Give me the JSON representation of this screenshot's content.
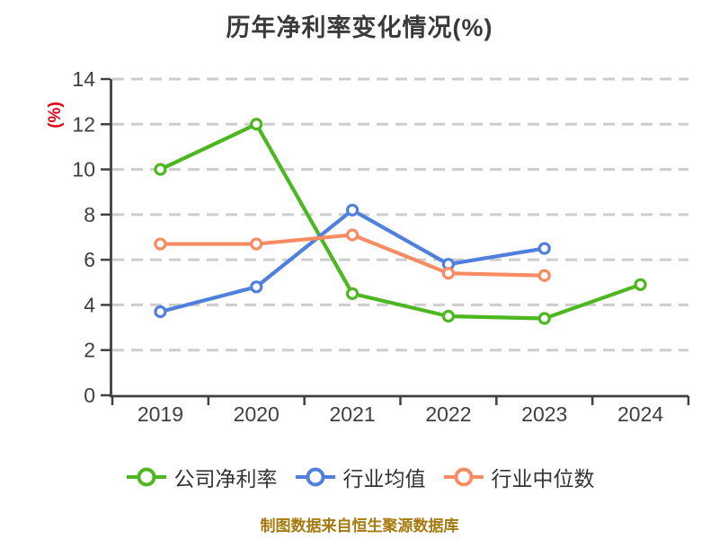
{
  "footer": {
    "text": "制图数据来自恒生聚源数据库"
  },
  "style": {
    "background": "#ffffff",
    "title_color": "#3a3a3a",
    "axis_color": "#404040",
    "tick_label_color": "#3f3f3f",
    "grid_color": "#cdcdcd",
    "ylabel_color": "#e60012",
    "legend_label_color": "#333333",
    "footer_color": "#a6790b",
    "marker_fill": "#ffffff"
  },
  "chart_data": {
    "type": "line",
    "title": "历年净利率变化情况(%)",
    "ylabel": "(%)",
    "categories": [
      "2019",
      "2020",
      "2021",
      "2022",
      "2023",
      "2024"
    ],
    "series": [
      {
        "name": "公司净利率",
        "color": "#4cb71f",
        "values": [
          10.0,
          12.0,
          4.5,
          3.5,
          3.4,
          4.9
        ]
      },
      {
        "name": "行业均值",
        "color": "#5080dd",
        "values": [
          3.7,
          4.8,
          8.2,
          5.8,
          6.5,
          null
        ]
      },
      {
        "name": "行业中位数",
        "color": "#f78b62",
        "values": [
          6.7,
          6.7,
          7.1,
          5.4,
          5.3,
          null
        ]
      }
    ],
    "ylim": [
      0,
      14
    ],
    "ytick_step": 2,
    "grid": true,
    "grid_style": "dashed",
    "marker": "open-circle",
    "legend_position": "bottom"
  }
}
